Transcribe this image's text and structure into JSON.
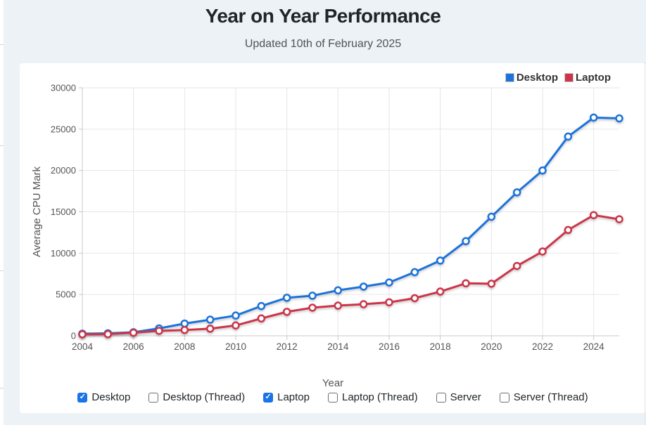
{
  "page": {
    "title": "Year on Year Performance",
    "subtitle": "Updated 10th of February 2025"
  },
  "legend": {
    "items": [
      {
        "label": "Desktop",
        "color": "#1e72d9"
      },
      {
        "label": "Laptop",
        "color": "#cb3449"
      }
    ]
  },
  "controls": {
    "checkboxes": [
      {
        "label": "Desktop",
        "checked": true
      },
      {
        "label": "Desktop (Thread)",
        "checked": false
      },
      {
        "label": "Laptop",
        "checked": true
      },
      {
        "label": "Laptop (Thread)",
        "checked": false
      },
      {
        "label": "Server",
        "checked": false
      },
      {
        "label": "Server (Thread)",
        "checked": false
      }
    ],
    "checked_color": "#1a73e8",
    "check_glyph": "✓"
  },
  "chart_data": {
    "type": "line",
    "title": "Year on Year Performance",
    "xlabel": "Year",
    "ylabel": "Average CPU Mark",
    "x": [
      2004,
      2005,
      2006,
      2007,
      2008,
      2009,
      2010,
      2011,
      2012,
      2013,
      2014,
      2015,
      2016,
      2017,
      2018,
      2019,
      2020,
      2021,
      2022,
      2023,
      2024,
      2025
    ],
    "series": [
      {
        "name": "Desktop",
        "color": "#1e72d9",
        "values": [
          250,
          300,
          430,
          890,
          1480,
          1950,
          2450,
          3600,
          4600,
          4850,
          5500,
          5950,
          6450,
          7700,
          9100,
          11450,
          14400,
          17350,
          20000,
          24100,
          26400,
          26300
        ]
      },
      {
        "name": "Laptop",
        "color": "#cb3449",
        "values": [
          180,
          200,
          375,
          600,
          700,
          860,
          1250,
          2100,
          2900,
          3400,
          3650,
          3820,
          4050,
          4550,
          5350,
          6350,
          6300,
          8450,
          10200,
          12800,
          14600,
          14100
        ]
      }
    ],
    "xlim": [
      2004,
      2025
    ],
    "ylim": [
      0,
      30000
    ],
    "yticks": [
      0,
      5000,
      10000,
      15000,
      20000,
      25000,
      30000
    ],
    "xticks": [
      2004,
      2006,
      2008,
      2010,
      2012,
      2014,
      2016,
      2018,
      2020,
      2022,
      2024
    ],
    "grid": true,
    "legend_position": "top-right",
    "marker": "open-circle"
  }
}
